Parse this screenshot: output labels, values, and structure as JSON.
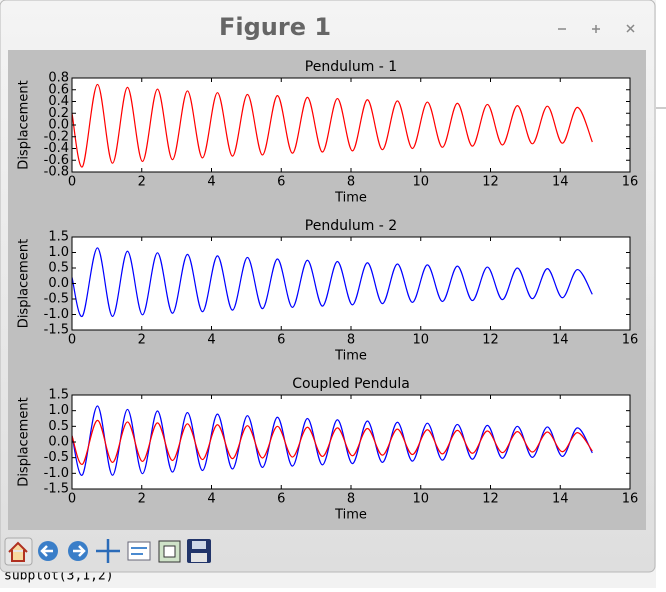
{
  "window": {
    "title": "Figure 1"
  },
  "background_text": "subplot(3,1,2)",
  "chart_data": [
    {
      "type": "line",
      "title": "Pendulum - 1",
      "x_label": "Time",
      "y_label": "Displacement",
      "x": [
        0,
        0.3,
        0.73,
        1.16,
        1.59,
        2.02,
        2.45,
        2.88,
        3.31,
        3.74,
        4.17,
        4.6,
        5.03,
        5.46,
        5.89,
        6.32,
        6.75,
        7.18,
        7.61,
        8.04,
        8.47,
        8.9,
        9.33,
        9.76,
        10.19,
        10.62,
        11.05,
        11.48,
        11.91,
        12.34,
        12.77,
        13.2,
        13.63,
        14.06,
        14.49,
        14.92
      ],
      "series": [
        {
          "color": "#ff0000",
          "values": [
            0.2,
            -0.71,
            0.69,
            -0.65,
            0.64,
            -0.62,
            0.61,
            -0.59,
            0.58,
            -0.56,
            0.55,
            -0.53,
            0.52,
            -0.51,
            0.5,
            -0.48,
            0.47,
            -0.46,
            0.45,
            -0.44,
            0.43,
            -0.42,
            0.41,
            -0.4,
            0.39,
            -0.38,
            0.37,
            -0.36,
            0.35,
            -0.34,
            0.33,
            -0.32,
            0.32,
            -0.31,
            0.3,
            -0.29
          ]
        }
      ],
      "xlim": [
        0,
        16
      ],
      "xticks": [
        0,
        2,
        4,
        6,
        8,
        10,
        12,
        14,
        16
      ],
      "ylim": [
        -0.8,
        0.8
      ],
      "yticks": [
        -0.8,
        -0.6,
        -0.4,
        -0.2,
        {
          "value": 0,
          "label": "0.0"
        },
        0.2,
        0.4,
        0.6,
        0.8
      ]
    },
    {
      "type": "line",
      "title": "Pendulum - 2",
      "x_label": "Time",
      "y_label": "Displacement",
      "x": [
        0,
        0.3,
        0.73,
        1.16,
        1.59,
        2.02,
        2.45,
        2.88,
        3.31,
        3.74,
        4.17,
        4.6,
        5.03,
        5.46,
        5.89,
        6.32,
        6.75,
        7.18,
        7.61,
        8.04,
        8.47,
        8.9,
        9.33,
        9.76,
        10.19,
        10.62,
        11.05,
        11.48,
        11.91,
        12.34,
        12.77,
        13.2,
        13.63,
        14.06,
        14.49,
        14.92
      ],
      "series": [
        {
          "color": "#0000ff",
          "values": [
            0.2,
            -1.05,
            1.15,
            -1.06,
            1.04,
            -1.01,
            0.99,
            -0.96,
            0.94,
            -0.91,
            0.89,
            -0.86,
            0.84,
            -0.81,
            0.79,
            -0.77,
            0.75,
            -0.73,
            0.71,
            -0.69,
            0.67,
            -0.65,
            0.63,
            -0.61,
            0.6,
            -0.58,
            0.56,
            -0.55,
            0.53,
            -0.52,
            0.5,
            -0.49,
            0.48,
            -0.46,
            0.45,
            -0.35
          ]
        }
      ],
      "xlim": [
        0,
        16
      ],
      "xticks": [
        0,
        2,
        4,
        6,
        8,
        10,
        12,
        14,
        16
      ],
      "ylim": [
        -1.5,
        1.5
      ],
      "yticks": [
        -1.5,
        {
          "value": -1,
          "label": "-1.0"
        },
        -0.5,
        {
          "value": 0,
          "label": "0.0"
        },
        0.5,
        {
          "value": 1,
          "label": "1.0"
        },
        1.5
      ]
    },
    {
      "type": "line",
      "title": "Coupled Pendula",
      "x_label": "Time",
      "y_label": "Displacement",
      "x": [
        0,
        0.3,
        0.73,
        1.16,
        1.59,
        2.02,
        2.45,
        2.88,
        3.31,
        3.74,
        4.17,
        4.6,
        5.03,
        5.46,
        5.89,
        6.32,
        6.75,
        7.18,
        7.61,
        8.04,
        8.47,
        8.9,
        9.33,
        9.76,
        10.19,
        10.62,
        11.05,
        11.48,
        11.91,
        12.34,
        12.77,
        13.2,
        13.63,
        14.06,
        14.49,
        14.92
      ],
      "series": [
        {
          "color": "#0000ff",
          "values": [
            0.2,
            -1.05,
            1.15,
            -1.06,
            1.04,
            -1.01,
            0.99,
            -0.96,
            0.94,
            -0.91,
            0.89,
            -0.86,
            0.84,
            -0.81,
            0.79,
            -0.77,
            0.75,
            -0.73,
            0.71,
            -0.69,
            0.67,
            -0.65,
            0.63,
            -0.61,
            0.6,
            -0.58,
            0.56,
            -0.55,
            0.53,
            -0.52,
            0.5,
            -0.49,
            0.48,
            -0.46,
            0.45,
            -0.35
          ]
        },
        {
          "color": "#ff0000",
          "values": [
            0.2,
            -0.71,
            0.69,
            -0.65,
            0.64,
            -0.62,
            0.61,
            -0.59,
            0.58,
            -0.56,
            0.55,
            -0.53,
            0.52,
            -0.51,
            0.5,
            -0.48,
            0.47,
            -0.46,
            0.45,
            -0.44,
            0.43,
            -0.42,
            0.41,
            -0.4,
            0.39,
            -0.38,
            0.37,
            -0.36,
            0.35,
            -0.34,
            0.33,
            -0.32,
            0.32,
            -0.31,
            0.3,
            -0.29
          ]
        }
      ],
      "xlim": [
        0,
        16
      ],
      "xticks": [
        0,
        2,
        4,
        6,
        8,
        10,
        12,
        14,
        16
      ],
      "ylim": [
        -1.5,
        1.5
      ],
      "yticks": [
        -1.5,
        {
          "value": -1,
          "label": "-1.0"
        },
        -0.5,
        {
          "value": 0,
          "label": "0.0"
        },
        0.5,
        {
          "value": 1,
          "label": "1.0"
        },
        1.5
      ]
    }
  ]
}
